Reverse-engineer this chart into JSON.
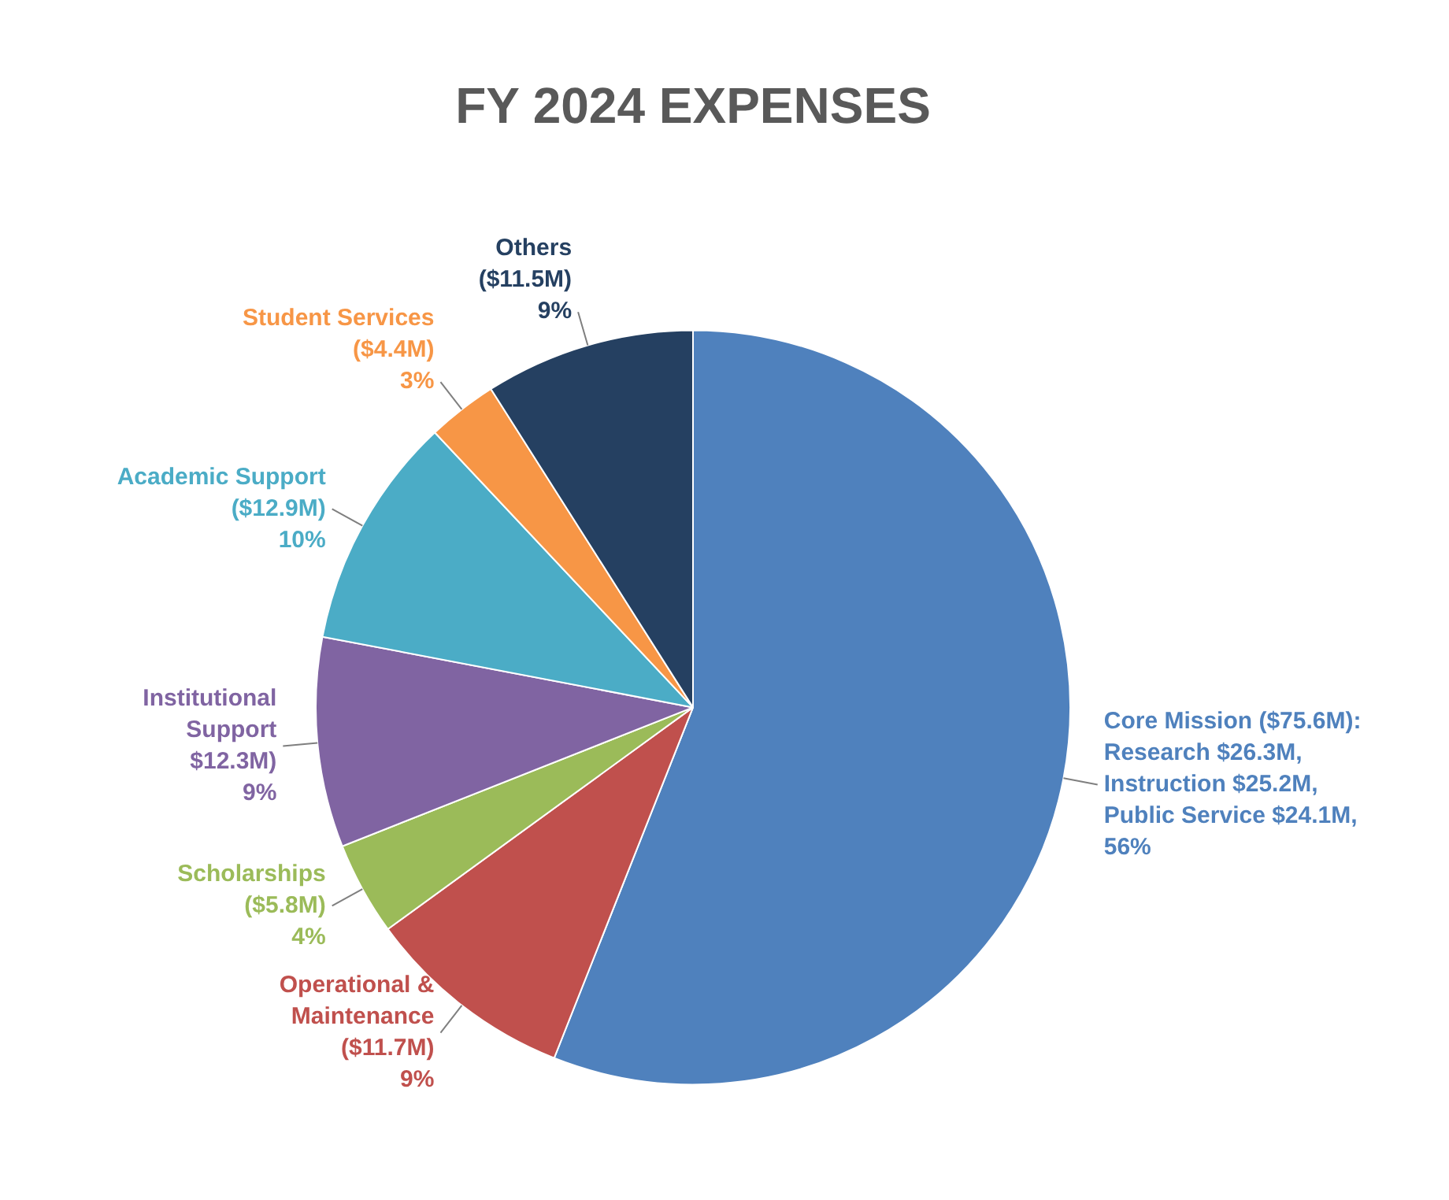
{
  "chart_data": {
    "type": "pie",
    "title": "FY 2024 EXPENSES",
    "categories": [
      "Core Mission ($75.6M)",
      "Operational &\nMaintenance\n($11.7M)",
      "Scholarships\n($5.8M)",
      "Institutional\nSupport\n$12.3M)",
      "Academic Support\n($12.9M)",
      "Student Services\n($4.4M)",
      "Others\n($11.5M)"
    ],
    "values": [
      56,
      9,
      4,
      9,
      10,
      3,
      9
    ],
    "colors": [
      "#4f81bd",
      "#c0504d",
      "#9bbb59",
      "#8064a2",
      "#4bacc6",
      "#f79646",
      "#254061"
    ],
    "value_labels": [
      "56%",
      "9%",
      "4%",
      "9%",
      "10%",
      "3%",
      "9%"
    ],
    "annotations": [
      {
        "text": ":\nResearch $26.3M,\nInstruction $25.2M,\nPublic Service $24.1M,",
        "x": "Core Mission ($75.6M)"
      }
    ],
    "legend": false
  }
}
